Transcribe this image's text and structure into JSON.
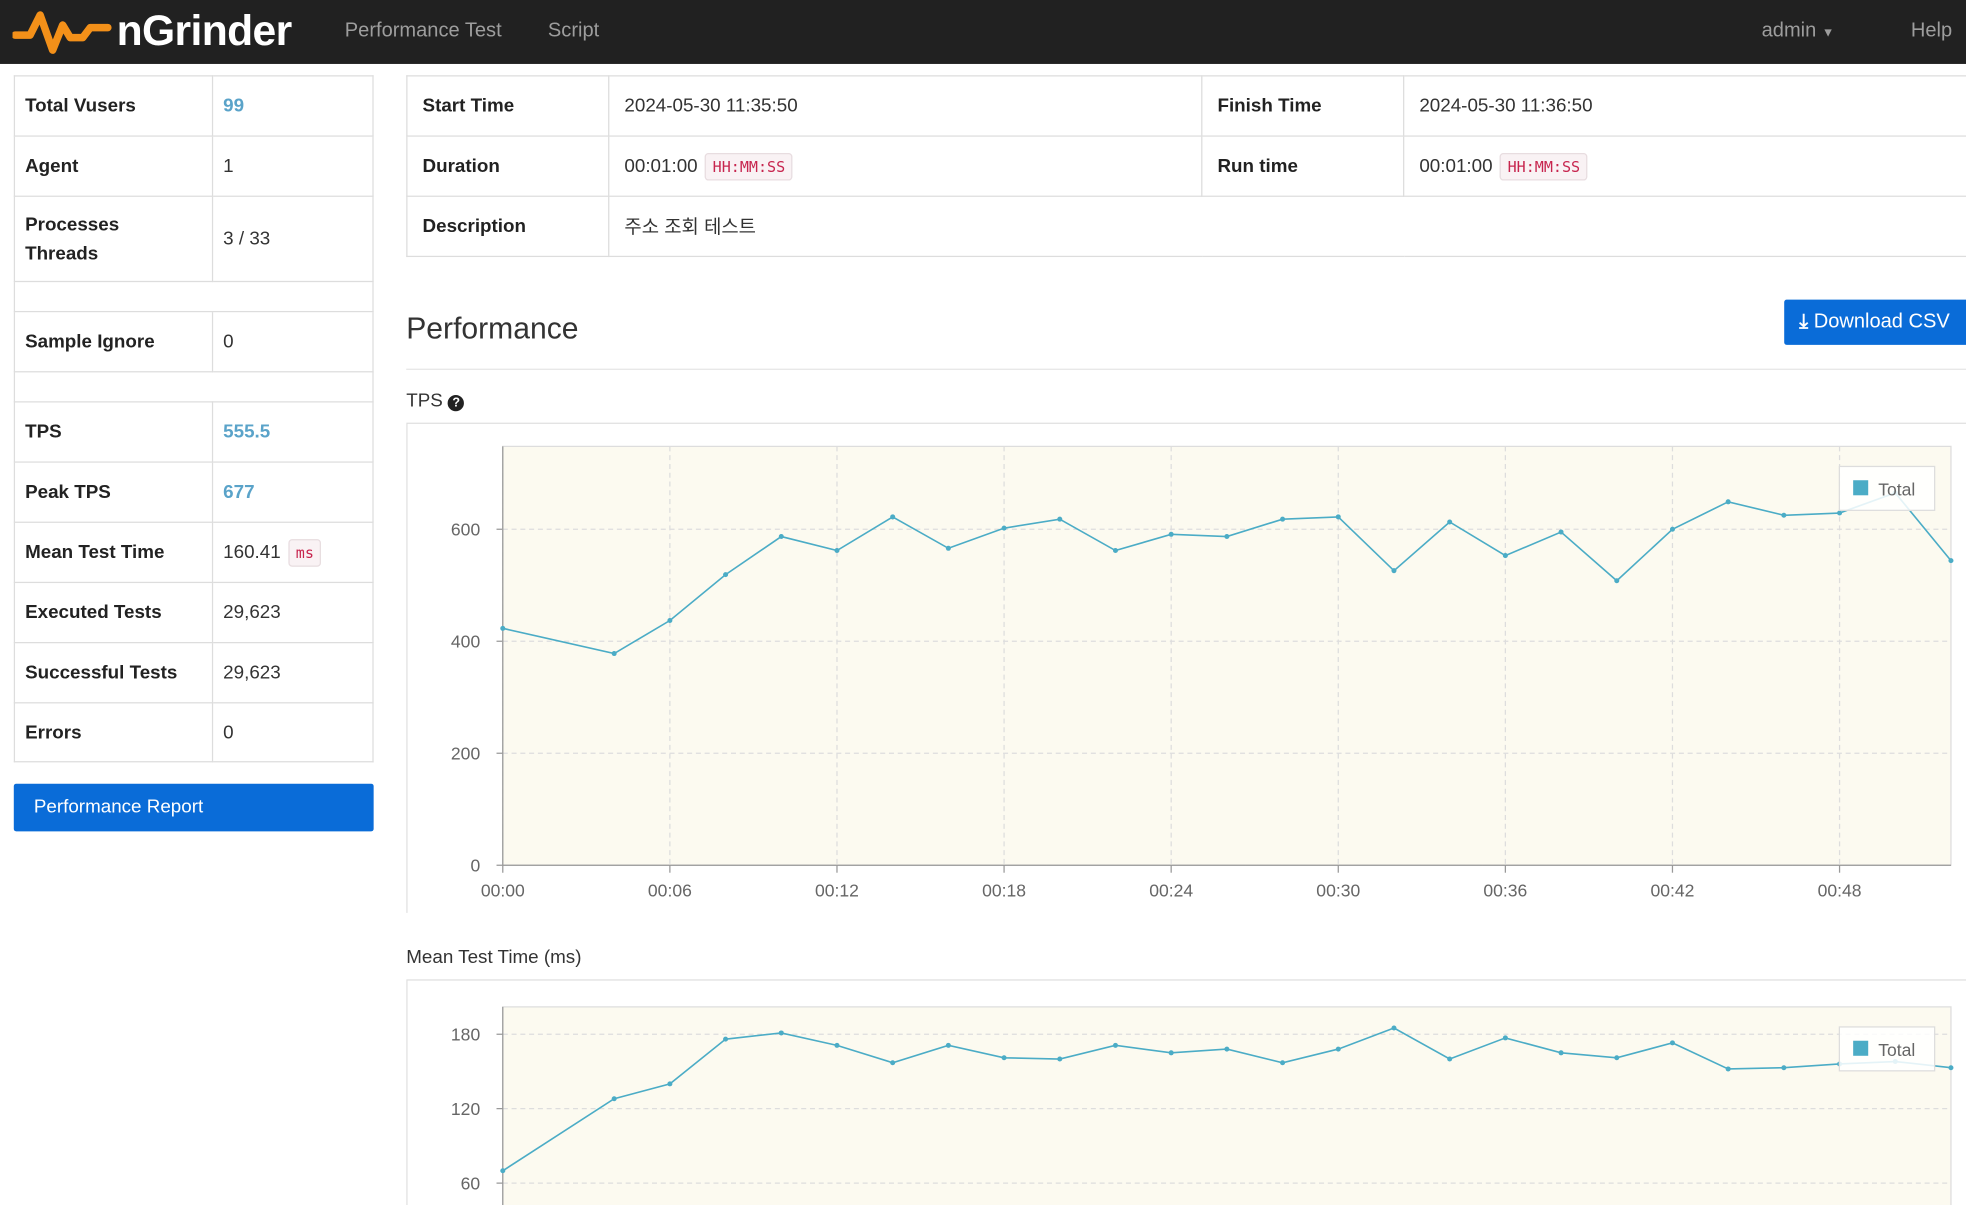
{
  "nav": {
    "brand": "nGrinder",
    "menu": [
      "Performance Test",
      "Script"
    ],
    "user": "admin",
    "help": "Help"
  },
  "summary": {
    "total_vusers": {
      "label": "Total Vusers",
      "value": "99"
    },
    "agent": {
      "label": "Agent",
      "value": "1"
    },
    "processes_threads": {
      "label": [
        "Processes",
        "Threads"
      ],
      "value": "3 / 33"
    },
    "sample_ignore": {
      "label": "Sample Ignore",
      "value": "0"
    },
    "tps": {
      "label": "TPS",
      "value": "555.5"
    },
    "peak_tps": {
      "label": "Peak TPS",
      "value": "677"
    },
    "mean_test_time": {
      "label": "Mean Test Time",
      "value": "160.41",
      "unit": "ms"
    },
    "executed_tests": {
      "label": "Executed Tests",
      "value": "29,623"
    },
    "successful_tests": {
      "label": "Successful Tests",
      "value": "29,623"
    },
    "errors": {
      "label": "Errors",
      "value": "0"
    }
  },
  "report_button": "Performance Report",
  "info": {
    "start_time": {
      "label": "Start Time",
      "value": "2024-05-30 11:35:50"
    },
    "finish_time": {
      "label": "Finish Time",
      "value": "2024-05-30 11:36:50"
    },
    "duration": {
      "label": "Duration",
      "value": "00:01:00",
      "format": "HH:MM:SS"
    },
    "run_time": {
      "label": "Run time",
      "value": "00:01:00",
      "format": "HH:MM:SS"
    },
    "description": {
      "label": "Description",
      "value": "주소 조회 테스트"
    }
  },
  "section_title": "Performance",
  "download_button": "Download CSV",
  "chart_data": [
    {
      "type": "line",
      "title": "TPS",
      "x": [
        0,
        4,
        6,
        8,
        10,
        12,
        14,
        16,
        18,
        20,
        22,
        24,
        26,
        28,
        30,
        32,
        34,
        36,
        38,
        40,
        42,
        44,
        46,
        48,
        50,
        52
      ],
      "series": [
        {
          "name": "Total",
          "color": "#4bacc6",
          "values": [
            423,
            378,
            437,
            519,
            587,
            562,
            622,
            566,
            602,
            618,
            562,
            591,
            587,
            618,
            622,
            526,
            613,
            553,
            595,
            508,
            600,
            649,
            625,
            629,
            665,
            544
          ]
        }
      ],
      "xlim": [
        0,
        52
      ],
      "xticks": [
        {
          "value": 0,
          "label": "00:00"
        },
        {
          "value": 6,
          "label": "00:06"
        },
        {
          "value": 12,
          "label": "00:12"
        },
        {
          "value": 18,
          "label": "00:18"
        },
        {
          "value": 24,
          "label": "00:24"
        },
        {
          "value": 30,
          "label": "00:30"
        },
        {
          "value": 36,
          "label": "00:36"
        },
        {
          "value": 42,
          "label": "00:42"
        },
        {
          "value": 48,
          "label": "00:48"
        }
      ],
      "ylim": [
        0,
        748
      ],
      "yticks": [
        0,
        200,
        400,
        600
      ],
      "grid": true
    },
    {
      "type": "line",
      "title": "Mean Test Time (ms)",
      "x": [
        0,
        4,
        6,
        8,
        10,
        12,
        14,
        16,
        18,
        20,
        22,
        24,
        26,
        28,
        30,
        32,
        34,
        36,
        38,
        40,
        42,
        44,
        46,
        48,
        50,
        52
      ],
      "series": [
        {
          "name": "Total",
          "color": "#4bacc6",
          "values": [
            70,
            128,
            140,
            176,
            181,
            171,
            157,
            171,
            161,
            160,
            171,
            165,
            168,
            157,
            168,
            185,
            160,
            177,
            165,
            161,
            173,
            152,
            153,
            156,
            158,
            153
          ]
        }
      ],
      "xlim": [
        0,
        52
      ],
      "ylim": [
        0,
        202
      ],
      "yticks": [
        60,
        120,
        180
      ],
      "grid": true
    }
  ]
}
